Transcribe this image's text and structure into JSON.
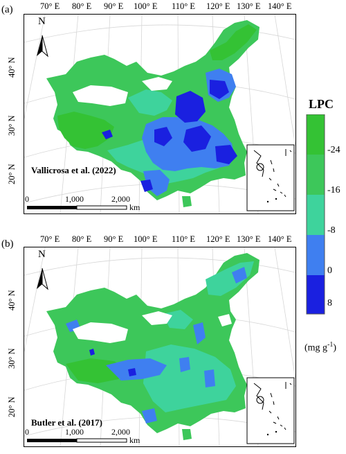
{
  "colors": {
    "bright_green": "#34c234",
    "green": "#3dc75a",
    "mint": "#3ed39c",
    "light_blue": "#3f7ff0",
    "dark_blue": "#1a20e0"
  },
  "lon_labels": [
    "70° E",
    "80° E",
    "90° E",
    "100° E",
    "110° E",
    "120° E",
    "130° E",
    "140° E"
  ],
  "lat_labels": [
    "40° N",
    "30° N",
    "20° N"
  ],
  "north_label": "N",
  "scale": {
    "labels": [
      "0",
      "1,000",
      "2,000"
    ],
    "unit": "km"
  },
  "panels": [
    {
      "label": "(a)",
      "source": "Vallicrosa et al. (2022)"
    },
    {
      "label": "(b)",
      "source": "Butler et al. (2017)"
    }
  ],
  "legend": {
    "title": "LPC",
    "ticks": [
      "-24",
      "-16",
      "-8",
      "0",
      "8"
    ],
    "unit": "(mg g",
    "unit_sup": "-1",
    "unit_end": ")"
  }
}
